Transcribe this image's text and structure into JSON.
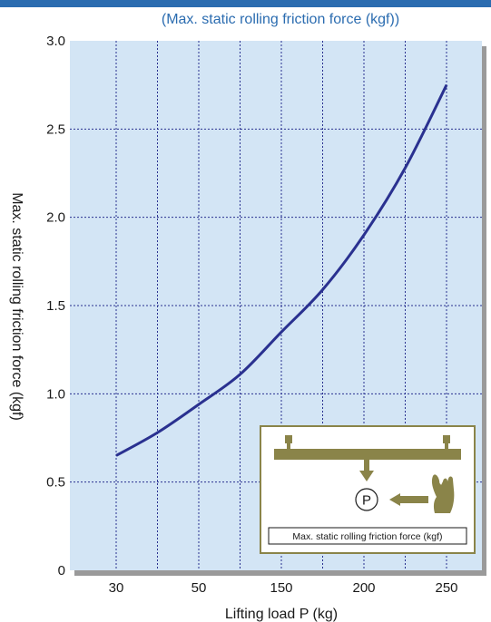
{
  "chart_data": {
    "type": "line",
    "title": "(Max. static rolling friction force (kgf))",
    "xlabel": "Lifting load P (kg)",
    "ylabel": "Max. static rolling friction force (kgf)",
    "x_tick_labels": [
      "30",
      "50",
      "150",
      "200",
      "250"
    ],
    "y_tick_labels": [
      "0",
      "0.5",
      "1.0",
      "1.5",
      "2.0",
      "2.5",
      "3.0"
    ],
    "ylim": [
      0,
      3.0
    ],
    "grid": true,
    "series": [
      {
        "x": [
          30,
          40,
          50,
          100,
          150,
          175,
          200,
          225,
          250
        ],
        "y": [
          0.65,
          0.78,
          0.94,
          1.11,
          1.35,
          1.59,
          1.9,
          2.28,
          2.75
        ]
      }
    ],
    "inset": {
      "caption": "Max. static rolling friction force (kgf)",
      "symbol": "P",
      "icons": [
        "rail-icon",
        "down-arrow-icon",
        "left-arrow-icon",
        "hand-icon"
      ]
    },
    "colors": {
      "plot_bg": "#d3e5f5",
      "curve": "#2a3190",
      "grid": "#2a3190",
      "inset_border": "#8a8449",
      "inset_fill": "#8a8449",
      "title": "#2b6cb0"
    }
  }
}
